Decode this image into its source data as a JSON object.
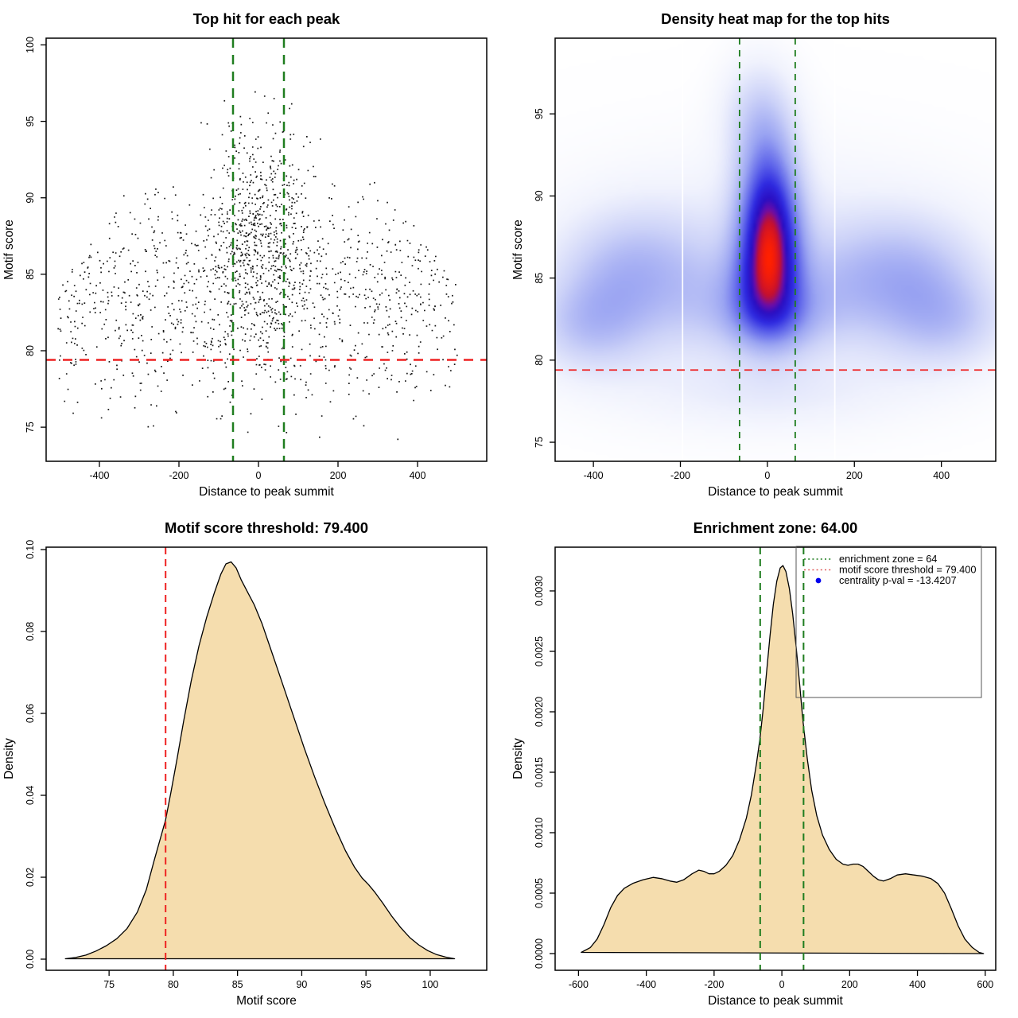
{
  "figure": {
    "background": "#ffffff",
    "text_color": "#000000",
    "accent_green": "#1f7d1f",
    "accent_red": "#ee2222",
    "fill_wheat": "#f5ddae",
    "legend_blue": "#0000ee"
  },
  "chart_data": [
    {
      "panel": "top-left",
      "type": "scatter",
      "title": "Top hit for each peak",
      "xlabel": "Distance to peak summit",
      "ylabel": "Motif score",
      "xlim": [
        -534,
        574
      ],
      "ylim": [
        72.77,
        100.44
      ],
      "xticks": [
        -400,
        -200,
        0,
        200,
        400
      ],
      "xtick_labels": [
        "-400",
        "-200",
        "0",
        "200",
        "400"
      ],
      "yticks": [
        75,
        80,
        85,
        90,
        95,
        100
      ],
      "ytick_labels": [
        "75",
        "80",
        "85",
        "90",
        "95",
        "100"
      ],
      "grid": false,
      "point_color": "#161616",
      "point_size": 1.7,
      "n_points_estimate": 1760,
      "generator": {
        "seed": 20240907,
        "clusters": [
          {
            "n": 980,
            "x": {
              "kind": "uniform",
              "min": -505,
              "max": 505
            },
            "y": {
              "kind": "normal",
              "mean": 83.6,
              "sd": 3.1,
              "min": 73.6,
              "max": 94.5
            },
            "taper": {
              "start": 84,
              "range": 16,
              "amount": 0.85
            }
          },
          {
            "n": 500,
            "x": {
              "kind": "normal",
              "mean": 0,
              "sd": 55
            },
            "y": {
              "kind": "normal",
              "mean": 88.0,
              "sd": 3.6,
              "min": 75,
              "max": 99.2
            }
          },
          {
            "n": 210,
            "x": {
              "kind": "normal",
              "mean": 0,
              "sd": 130
            },
            "y": {
              "kind": "normal",
              "mean": 85.5,
              "sd": 3.8,
              "min": 74,
              "max": 96
            }
          },
          {
            "n": 70,
            "x": {
              "kind": "uniform",
              "min": -490,
              "max": 490
            },
            "y": {
              "kind": "normal",
              "mean": 78.2,
              "sd": 1.8,
              "min": 73.6,
              "max": 80.5
            }
          }
        ]
      },
      "hlines": [
        {
          "y": 79.4,
          "color": "#ee2222",
          "width": 2.5,
          "dash": [
            12,
            9
          ],
          "meaning": "motif score threshold"
        }
      ],
      "vlines": [
        {
          "x": -64,
          "color": "#1f7d1f",
          "width": 2.5,
          "dash": [
            12,
            9
          ],
          "meaning": "enrichment zone"
        },
        {
          "x": 64,
          "color": "#1f7d1f",
          "width": 2.5,
          "dash": [
            12,
            9
          ],
          "meaning": "enrichment zone"
        }
      ]
    },
    {
      "panel": "top-right",
      "type": "heatmap",
      "title": "Density heat map for the top hits",
      "xlabel": "Distance to peak summit",
      "ylabel": "Motif score",
      "xlim": [
        -488,
        525
      ],
      "ylim": [
        73.84,
        99.61
      ],
      "xticks": [
        -400,
        -200,
        0,
        200,
        400
      ],
      "xtick_labels": [
        "-400",
        "-200",
        "0",
        "200",
        "400"
      ],
      "yticks": [
        75,
        80,
        85,
        90,
        95
      ],
      "ytick_labels": [
        "75",
        "80",
        "85",
        "90",
        "95"
      ],
      "density_components": [
        {
          "w": 1.6,
          "cx": 5,
          "cy": 87.3,
          "sx": 48,
          "sy": 3.0
        },
        {
          "w": 0.55,
          "cx": -5,
          "cy": 84.3,
          "sx": 62,
          "sy": 2.0
        },
        {
          "w": 0.45,
          "cx": 15,
          "cy": 82.5,
          "sx": 80,
          "sy": 1.5
        },
        {
          "w": 0.45,
          "cx": 0,
          "cy": 91.5,
          "sx": 46,
          "sy": 2.6
        },
        {
          "w": 0.3,
          "cx": -20,
          "cy": 95.0,
          "sx": 55,
          "sy": 2.2
        },
        {
          "w": 0.36,
          "cx": -350,
          "cy": 83.3,
          "sx": 95,
          "sy": 2.4
        },
        {
          "w": 0.3,
          "cx": -290,
          "cy": 86.2,
          "sx": 110,
          "sy": 2.2
        },
        {
          "w": 0.25,
          "cx": -430,
          "cy": 82.0,
          "sx": 80,
          "sy": 1.8
        },
        {
          "w": 0.36,
          "cx": 345,
          "cy": 83.6,
          "sx": 100,
          "sy": 2.4
        },
        {
          "w": 0.27,
          "cx": 290,
          "cy": 86.0,
          "sx": 115,
          "sy": 2.2
        },
        {
          "w": 0.24,
          "cx": 430,
          "cy": 82.3,
          "sx": 85,
          "sy": 1.8
        },
        {
          "w": 0.22,
          "cx": 0,
          "cy": 85.0,
          "sx": 330,
          "sy": 4.5
        },
        {
          "w": 0.18,
          "cx": -150,
          "cy": 83.5,
          "sx": 80,
          "sy": 2.0
        },
        {
          "w": 0.18,
          "cx": 160,
          "cy": 84.0,
          "sx": 80,
          "sy": 2.0
        },
        {
          "w": 0.12,
          "cx": 0,
          "cy": 78.0,
          "sx": 200,
          "sy": 1.5
        }
      ],
      "colormap": [
        [
          0.0,
          "#ffffff"
        ],
        [
          0.1,
          "#f0f2fd"
        ],
        [
          0.25,
          "#ccd2f8"
        ],
        [
          0.42,
          "#9aa4f2"
        ],
        [
          0.58,
          "#5d63ea"
        ],
        [
          0.7,
          "#2e2ae0"
        ],
        [
          0.8,
          "#2a0ec2"
        ],
        [
          0.86,
          "#6a0da8"
        ],
        [
          0.92,
          "#c41030"
        ],
        [
          1.0,
          "#ff2000"
        ]
      ],
      "colormap_gamma": 0.8,
      "white_artifact_lines_x": [
        -195,
        155
      ],
      "hlines": [
        {
          "y": 79.4,
          "color": "#ee2222",
          "width": 1.7,
          "dash": [
            10,
            7
          ],
          "meaning": "motif score threshold"
        }
      ],
      "vlines": [
        {
          "x": -64,
          "color": "#1f7d1f",
          "width": 1.8,
          "dash": [
            8,
            7
          ],
          "meaning": "enrichment zone"
        },
        {
          "x": 64,
          "color": "#1f7d1f",
          "width": 1.8,
          "dash": [
            8,
            7
          ],
          "meaning": "enrichment zone"
        }
      ]
    },
    {
      "panel": "bottom-left",
      "type": "area",
      "title": "Motif score threshold: 79.400",
      "xlabel": "Motif score",
      "ylabel": "Density",
      "xlim": [
        70.1,
        104.4
      ],
      "ylim": [
        -0.002718,
        0.100583
      ],
      "xticks": [
        75,
        80,
        85,
        90,
        95,
        100
      ],
      "xtick_labels": [
        "75",
        "80",
        "85",
        "90",
        "95",
        "100"
      ],
      "yticks": [
        0.0,
        0.02,
        0.04,
        0.06,
        0.08,
        0.1
      ],
      "ytick_labels": [
        "0.00",
        "0.02",
        "0.04",
        "0.06",
        "0.08",
        "0.10"
      ],
      "fill": "#f5ddae",
      "stroke": "#000000",
      "curve": [
        [
          71.6,
          0.0001
        ],
        [
          72.4,
          0.0004
        ],
        [
          73.2,
          0.001
        ],
        [
          74,
          0.002
        ],
        [
          74.8,
          0.0033
        ],
        [
          75.6,
          0.005
        ],
        [
          76.4,
          0.0075
        ],
        [
          77.2,
          0.0115
        ],
        [
          77.9,
          0.017
        ],
        [
          78.5,
          0.024
        ],
        [
          79,
          0.0295
        ],
        [
          79.4,
          0.034
        ],
        [
          79.8,
          0.0405
        ],
        [
          80.3,
          0.049
        ],
        [
          80.8,
          0.058
        ],
        [
          81.4,
          0.068
        ],
        [
          82,
          0.0765
        ],
        [
          82.6,
          0.0835
        ],
        [
          83.2,
          0.0895
        ],
        [
          83.7,
          0.094
        ],
        [
          84.1,
          0.0965
        ],
        [
          84.5,
          0.097
        ],
        [
          84.9,
          0.0955
        ],
        [
          85.3,
          0.0925
        ],
        [
          85.8,
          0.0895
        ],
        [
          86.3,
          0.0865
        ],
        [
          86.9,
          0.082
        ],
        [
          87.5,
          0.0765
        ],
        [
          88.1,
          0.071
        ],
        [
          88.8,
          0.0645
        ],
        [
          89.5,
          0.058
        ],
        [
          90.2,
          0.0515
        ],
        [
          91,
          0.0445
        ],
        [
          91.8,
          0.038
        ],
        [
          92.6,
          0.032
        ],
        [
          93.4,
          0.0265
        ],
        [
          94.1,
          0.0225
        ],
        [
          94.7,
          0.0198
        ],
        [
          95.2,
          0.0182
        ],
        [
          95.7,
          0.0163
        ],
        [
          96.3,
          0.0137
        ],
        [
          97,
          0.0105
        ],
        [
          97.7,
          0.0077
        ],
        [
          98.4,
          0.0053
        ],
        [
          99.1,
          0.0035
        ],
        [
          99.8,
          0.0021
        ],
        [
          100.5,
          0.0011
        ],
        [
          101.2,
          0.0005
        ],
        [
          101.9,
          0.0001
        ]
      ],
      "vlines": [
        {
          "x": 79.4,
          "color": "#ee2222",
          "width": 2,
          "dash": [
            9,
            6
          ],
          "meaning": "motif score threshold"
        }
      ]
    },
    {
      "panel": "bottom-right",
      "type": "area",
      "title": "Enrichment zone: 64.00",
      "xlabel": "Distance to peak summit",
      "ylabel": "Density",
      "xlim": [
        -669,
        631
      ],
      "ylim": [
        -0.0001382,
        0.0033618
      ],
      "xticks": [
        -600,
        -400,
        -200,
        0,
        200,
        400,
        600
      ],
      "xtick_labels": [
        "-600",
        "-400",
        "-200",
        "0",
        "200",
        "400",
        "600"
      ],
      "yticks": [
        0.0,
        0.0005,
        0.001,
        0.0015,
        0.002,
        0.0025,
        0.003
      ],
      "ytick_labels": [
        "0.0000",
        "0.0005",
        "0.0010",
        "0.0015",
        "0.0020",
        "0.0025",
        "0.0030"
      ],
      "fill": "#f5ddae",
      "stroke": "#000000",
      "curve": [
        [
          -592,
          1e-05
        ],
        [
          -565,
          5e-05
        ],
        [
          -545,
          0.00012
        ],
        [
          -525,
          0.00024
        ],
        [
          -505,
          0.00038
        ],
        [
          -485,
          0.00048
        ],
        [
          -465,
          0.00054
        ],
        [
          -440,
          0.00058
        ],
        [
          -410,
          0.00061
        ],
        [
          -380,
          0.00063
        ],
        [
          -355,
          0.00062
        ],
        [
          -330,
          0.0006
        ],
        [
          -310,
          0.00059
        ],
        [
          -290,
          0.00061
        ],
        [
          -265,
          0.00066
        ],
        [
          -245,
          0.00069
        ],
        [
          -230,
          0.00068
        ],
        [
          -215,
          0.00066
        ],
        [
          -200,
          0.00066
        ],
        [
          -185,
          0.00068
        ],
        [
          -165,
          0.00073
        ],
        [
          -145,
          0.00081
        ],
        [
          -125,
          0.00094
        ],
        [
          -105,
          0.00112
        ],
        [
          -90,
          0.00131
        ],
        [
          -75,
          0.00157
        ],
        [
          -65,
          0.00177
        ],
        [
          -55,
          0.00203
        ],
        [
          -45,
          0.00233
        ],
        [
          -35,
          0.00263
        ],
        [
          -25,
          0.00289
        ],
        [
          -15,
          0.00308
        ],
        [
          -5,
          0.00319
        ],
        [
          3,
          0.00321
        ],
        [
          12,
          0.00316
        ],
        [
          22,
          0.00302
        ],
        [
          32,
          0.00281
        ],
        [
          42,
          0.00254
        ],
        [
          52,
          0.00224
        ],
        [
          62,
          0.00193
        ],
        [
          75,
          0.00161
        ],
        [
          88,
          0.00135
        ],
        [
          103,
          0.00114
        ],
        [
          120,
          0.00098
        ],
        [
          140,
          0.00086
        ],
        [
          160,
          0.00078
        ],
        [
          180,
          0.00074
        ],
        [
          195,
          0.00073
        ],
        [
          210,
          0.00074
        ],
        [
          225,
          0.00074
        ],
        [
          240,
          0.00072
        ],
        [
          255,
          0.00068
        ],
        [
          270,
          0.00064
        ],
        [
          285,
          0.00061
        ],
        [
          300,
          0.0006
        ],
        [
          320,
          0.00062
        ],
        [
          340,
          0.00065
        ],
        [
          365,
          0.00066
        ],
        [
          390,
          0.00065
        ],
        [
          415,
          0.00064
        ],
        [
          440,
          0.00062
        ],
        [
          460,
          0.00058
        ],
        [
          480,
          0.0005
        ],
        [
          500,
          0.00037
        ],
        [
          520,
          0.00023
        ],
        [
          540,
          0.00012
        ],
        [
          562,
          5e-05
        ],
        [
          582,
          1e-05
        ],
        [
          595,
          0.0
        ]
      ],
      "vlines": [
        {
          "x": -64,
          "color": "#1f7d1f",
          "width": 2,
          "dash": [
            9,
            6
          ],
          "meaning": "enrichment zone"
        },
        {
          "x": 64,
          "color": "#1f7d1f",
          "width": 2,
          "dash": [
            9,
            6
          ],
          "meaning": "enrichment zone"
        }
      ],
      "legend": {
        "position": "topright",
        "border_color": "#555555",
        "entries": [
          {
            "swatch": "dotted-line",
            "color": "#1f7d1f",
            "label": "enrichment zone = 64"
          },
          {
            "swatch": "dotted-line",
            "color": "#e05c5c",
            "label": "motif score threshold = 79.400"
          },
          {
            "swatch": "dot",
            "color": "#0000ee",
            "label": "centrality p-val = -13.4207"
          }
        ]
      }
    }
  ]
}
